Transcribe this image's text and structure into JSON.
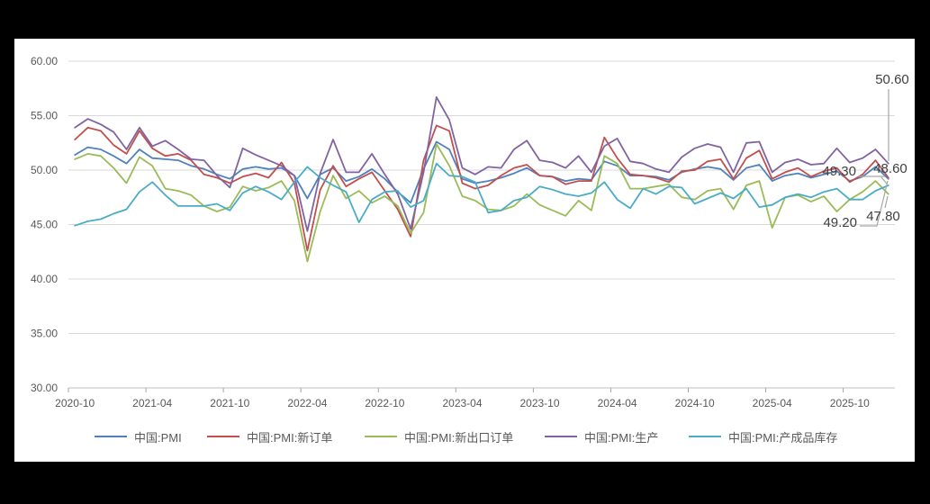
{
  "chart_data": {
    "type": "line",
    "title": "",
    "xlabel": "",
    "ylabel": "",
    "ylim": [
      30,
      60
    ],
    "grid": true,
    "legend_position": "bottom",
    "y_tick_labels": [
      "60.00",
      "55.00",
      "50.00",
      "45.00",
      "40.00",
      "35.00",
      "30.00"
    ],
    "x_tick_labels": [
      "2020-10",
      "2021-04",
      "2021-10",
      "2022-04",
      "2022-10",
      "2023-04",
      "2023-10",
      "2024-04",
      "2024-10",
      "2025-04",
      "2025-10"
    ],
    "x": [
      "2020-10",
      "2020-11",
      "2020-12",
      "2021-01",
      "2021-02",
      "2021-03",
      "2021-04",
      "2021-05",
      "2021-06",
      "2021-07",
      "2021-08",
      "2021-09",
      "2021-10",
      "2021-11",
      "2021-12",
      "2022-01",
      "2022-02",
      "2022-03",
      "2022-04",
      "2022-05",
      "2022-06",
      "2022-07",
      "2022-08",
      "2022-09",
      "2022-10",
      "2022-11",
      "2022-12",
      "2023-01",
      "2023-02",
      "2023-03",
      "2023-04",
      "2023-05",
      "2023-06",
      "2023-07",
      "2023-08",
      "2023-09",
      "2023-10",
      "2023-11",
      "2023-12",
      "2024-01",
      "2024-02",
      "2024-03",
      "2024-04",
      "2024-05",
      "2024-06",
      "2024-07",
      "2024-08",
      "2024-09",
      "2024-10",
      "2024-11",
      "2024-12",
      "2025-01",
      "2025-02",
      "2025-03",
      "2025-04",
      "2025-05",
      "2025-06",
      "2025-07",
      "2025-08",
      "2025-09",
      "2025-10",
      "2025-11",
      "2025-12",
      "2026-01"
    ],
    "series": [
      {
        "name": "中国:PMI",
        "slug": "pmi",
        "color": "#4F81BD",
        "end_label": "49.20",
        "values": [
          51.4,
          52.1,
          51.9,
          51.3,
          50.6,
          51.9,
          51.1,
          51.0,
          50.9,
          50.4,
          50.1,
          49.6,
          49.2,
          50.1,
          50.3,
          50.1,
          50.2,
          49.5,
          47.4,
          49.6,
          50.2,
          49.0,
          49.4,
          50.1,
          49.2,
          48.0,
          47.0,
          50.1,
          52.6,
          51.9,
          49.2,
          48.8,
          49.0,
          49.3,
          49.7,
          50.2,
          49.5,
          49.4,
          49.0,
          49.2,
          49.1,
          50.8,
          50.4,
          49.5,
          49.5,
          49.4,
          49.1,
          49.8,
          50.1,
          50.3,
          50.1,
          49.1,
          50.2,
          50.5,
          49.0,
          49.5,
          49.7,
          49.3,
          49.6,
          49.9,
          49.0,
          49.4,
          50.3,
          49.2
        ]
      },
      {
        "name": "中国:PMI:新订单",
        "slug": "new-orders",
        "color": "#C0504D",
        "end_label": "49.30",
        "values": [
          52.8,
          53.9,
          53.6,
          52.3,
          51.5,
          53.6,
          52.0,
          51.3,
          51.5,
          50.9,
          49.6,
          49.3,
          48.8,
          49.4,
          49.7,
          49.3,
          50.7,
          48.8,
          42.6,
          48.2,
          50.4,
          48.5,
          49.2,
          49.8,
          48.1,
          46.4,
          43.9,
          50.9,
          54.1,
          53.6,
          48.8,
          48.3,
          48.6,
          49.5,
          50.2,
          50.5,
          49.5,
          49.4,
          48.7,
          49.0,
          49.0,
          53.0,
          51.1,
          49.6,
          49.5,
          49.3,
          48.9,
          49.9,
          50.0,
          50.8,
          51.0,
          49.2,
          51.1,
          51.8,
          49.2,
          49.8,
          50.2,
          49.4,
          49.9,
          50.2,
          48.9,
          49.6,
          50.9,
          49.3
        ]
      },
      {
        "name": "中国:PMI:新出口订单",
        "slug": "new-export-orders",
        "color": "#9BBB59",
        "end_label": "47.80",
        "values": [
          51.0,
          51.5,
          51.3,
          50.2,
          48.8,
          51.2,
          50.4,
          48.3,
          48.1,
          47.7,
          46.7,
          46.2,
          46.6,
          48.5,
          48.1,
          48.4,
          49.0,
          47.2,
          41.6,
          46.2,
          49.5,
          47.4,
          48.1,
          47.0,
          47.6,
          46.7,
          44.2,
          46.1,
          52.4,
          50.4,
          47.6,
          47.2,
          46.4,
          46.3,
          46.7,
          47.8,
          46.8,
          46.3,
          45.8,
          47.2,
          46.3,
          51.3,
          50.6,
          48.3,
          48.3,
          48.5,
          48.7,
          47.5,
          47.3,
          48.1,
          48.3,
          46.4,
          48.6,
          49.0,
          44.7,
          47.5,
          47.7,
          47.1,
          47.6,
          46.2,
          47.3,
          48.0,
          49.0,
          47.8
        ]
      },
      {
        "name": "中国:PMI:生产",
        "slug": "production",
        "color": "#8064A2",
        "end_label": "50.60",
        "values": [
          53.9,
          54.7,
          54.2,
          53.5,
          51.9,
          53.9,
          52.2,
          52.7,
          51.9,
          51.0,
          50.9,
          49.5,
          48.4,
          52.0,
          51.4,
          50.9,
          50.4,
          49.5,
          44.4,
          49.7,
          52.8,
          49.8,
          49.8,
          51.5,
          49.6,
          47.8,
          44.6,
          49.8,
          56.7,
          54.6,
          50.2,
          49.6,
          50.3,
          50.2,
          51.9,
          52.7,
          50.9,
          50.7,
          50.2,
          51.3,
          49.8,
          52.2,
          52.9,
          50.8,
          50.6,
          50.1,
          49.8,
          51.2,
          52.0,
          52.4,
          52.1,
          49.8,
          52.5,
          52.6,
          49.8,
          50.7,
          51.0,
          50.5,
          50.6,
          52.0,
          50.7,
          51.1,
          51.9,
          50.6
        ]
      },
      {
        "name": "中国:PMI:产成品库存",
        "slug": "finished-goods-inventory",
        "color": "#4BACC6",
        "end_label": "48.60",
        "values": [
          44.9,
          45.3,
          45.5,
          46.0,
          46.4,
          48.0,
          48.9,
          47.7,
          46.7,
          46.7,
          46.7,
          46.9,
          46.3,
          47.9,
          48.5,
          48.0,
          47.3,
          48.9,
          50.3,
          49.3,
          48.6,
          48.0,
          45.2,
          47.3,
          48.0,
          48.1,
          46.6,
          47.2,
          50.6,
          49.5,
          49.4,
          48.9,
          46.1,
          46.3,
          47.2,
          47.5,
          48.5,
          48.2,
          47.8,
          47.6,
          47.9,
          48.9,
          47.3,
          46.5,
          48.3,
          47.8,
          48.5,
          48.4,
          46.9,
          47.4,
          47.9,
          47.4,
          48.3,
          46.6,
          46.8,
          47.5,
          47.8,
          47.5,
          48.0,
          48.3,
          47.3,
          47.3,
          48.1,
          48.6
        ]
      }
    ],
    "colors": {
      "grid_line": "#D9D9D9",
      "axis_line": "#BFBFBF",
      "tick_mark": "#A6A6A6",
      "axis_text": "#595959",
      "end_label_text": "#404040",
      "leader_line": "#A6A6A6",
      "panel_background": "#FFFFFF",
      "frame_background": "#000000"
    }
  }
}
